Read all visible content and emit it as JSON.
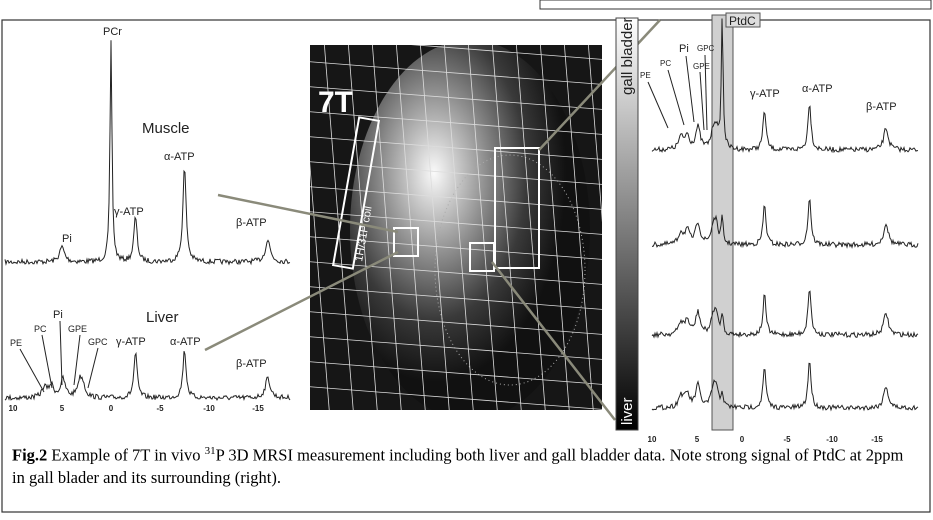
{
  "left_panel": {
    "muscle": {
      "title": "Muscle",
      "labels": [
        "PCr",
        "α-ATP",
        "γ-ATP",
        "Pi",
        "β-ATP"
      ]
    },
    "liver": {
      "title": "Liver",
      "labels": [
        "PE",
        "PC",
        "Pi",
        "GPE",
        "GPC",
        "γ-ATP",
        "α-ATP",
        "β-ATP"
      ]
    },
    "axis_ticks": [
      "10",
      "5",
      "0",
      "-5",
      "-10",
      "-15"
    ]
  },
  "mri": {
    "field": "7T",
    "coil_label": "1H/31P coil"
  },
  "right_panel": {
    "gradient_top": "gall bladder",
    "gradient_bottom": "liver",
    "highlight": "PtdC",
    "labels": [
      "PE",
      "PC",
      "Pi",
      "GPC",
      "GPE",
      "γ-ATP",
      "α-ATP",
      "β-ATP"
    ],
    "axis_ticks": [
      "10",
      "5",
      "0",
      "-5",
      "-10",
      "-15"
    ]
  },
  "caption": {
    "figure": "Fig.2",
    "text_before": " Example of 7T in vivo ",
    "superscript": "31",
    "text_after": "P 3D MRSI measurement including both liver and gall bladder data. Note strong signal of PtdC at 2ppm in gall blader and its surrounding (right)."
  }
}
